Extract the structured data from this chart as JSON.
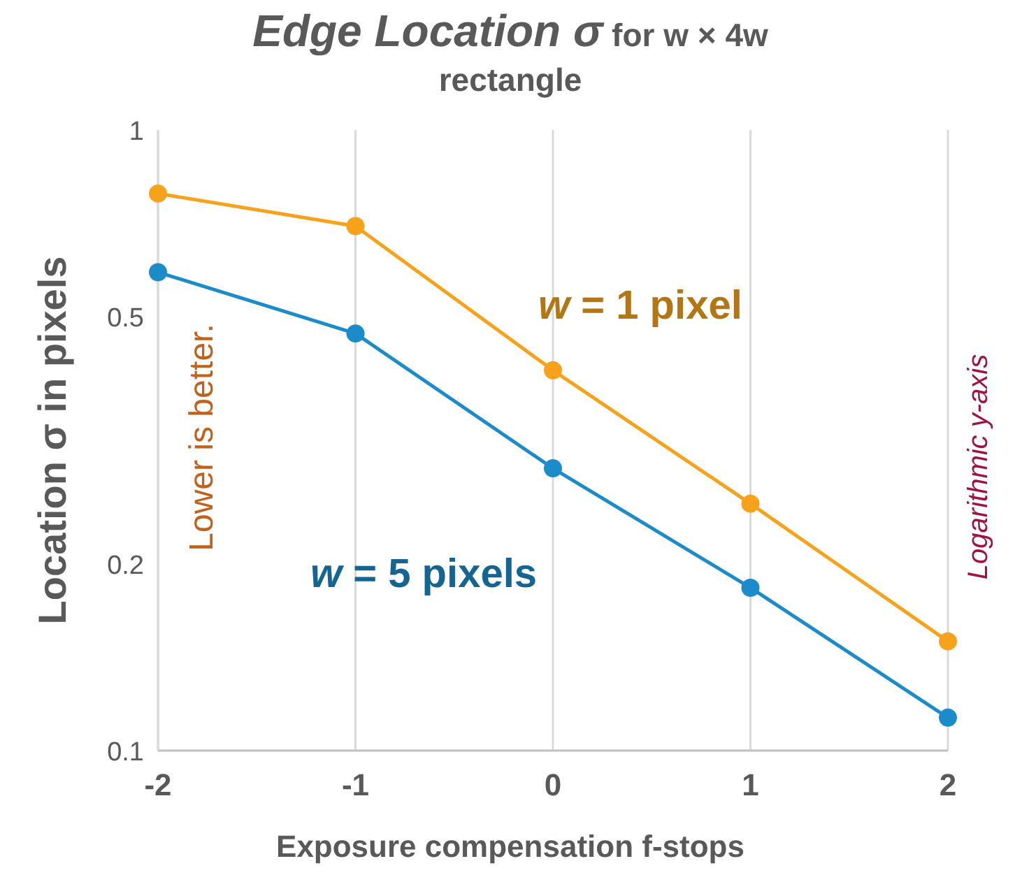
{
  "chart_data": {
    "type": "line",
    "title": "Edge Location σ",
    "subtitle": "for w × 4w rectangle",
    "xlabel": "Exposure compensation f-stops",
    "ylabel": "Location σ in pixels",
    "x": [
      -2,
      -1,
      0,
      1,
      2
    ],
    "series": [
      {
        "name": "w = 1 pixel",
        "color": "#f7a21b",
        "values": [
          0.79,
          0.7,
          0.41,
          0.25,
          0.15
        ]
      },
      {
        "name": "w = 5 pixels",
        "color": "#1b8bc9",
        "values": [
          0.59,
          0.47,
          0.285,
          0.183,
          0.113
        ]
      }
    ],
    "xlim": [
      -2,
      2
    ],
    "xticks": [
      -2,
      -1,
      0,
      1,
      2
    ],
    "ylim": [
      0.1,
      1
    ],
    "yticks": [
      0.1,
      0.2,
      0.5,
      1
    ],
    "log": "y",
    "grid": "x",
    "legend": false,
    "marker": "circle",
    "line_style": "solid",
    "annotations": [
      "Lower is better.",
      "Logarithmic y-axis"
    ]
  }
}
